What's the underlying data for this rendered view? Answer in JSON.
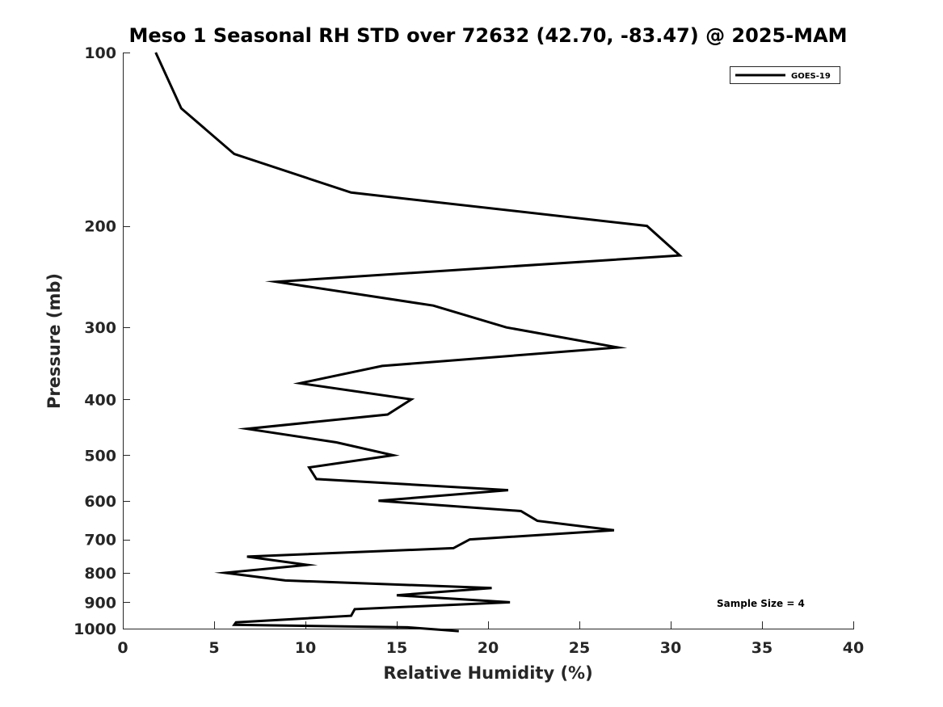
{
  "chart_data": {
    "type": "line",
    "title": "Meso 1 Seasonal RH STD over 72632 (42.70, -83.47) @ 2025-MAM",
    "xlabel": "Relative Humidity (%)",
    "ylabel": "Pressure (mb)",
    "xlim": [
      0,
      40
    ],
    "ylim": [
      100,
      1000
    ],
    "yscale": "log",
    "y_reversed": true,
    "x_ticks": [
      0,
      5,
      10,
      15,
      20,
      25,
      30,
      35,
      40
    ],
    "x_tick_labels": [
      "0",
      "5",
      "10",
      "15",
      "20",
      "25",
      "30",
      "35",
      "40"
    ],
    "y_ticks": [
      100,
      200,
      300,
      400,
      500,
      600,
      700,
      800,
      900,
      1000
    ],
    "y_tick_labels": [
      "100",
      "200",
      "300",
      "400",
      "500",
      "600",
      "700",
      "800",
      "900",
      "1000"
    ],
    "grid": false,
    "legend_position": "top-right",
    "series": [
      {
        "name": "GOES-19",
        "color": "#000000",
        "points": [
          {
            "x": 1.8,
            "y": 100
          },
          {
            "x": 3.2,
            "y": 125
          },
          {
            "x": 6.1,
            "y": 150
          },
          {
            "x": 12.5,
            "y": 175
          },
          {
            "x": 28.7,
            "y": 200
          },
          {
            "x": 30.5,
            "y": 225
          },
          {
            "x": 8.4,
            "y": 250
          },
          {
            "x": 17.0,
            "y": 275
          },
          {
            "x": 21.0,
            "y": 300
          },
          {
            "x": 27.1,
            "y": 325
          },
          {
            "x": 14.2,
            "y": 350
          },
          {
            "x": 9.7,
            "y": 375
          },
          {
            "x": 15.8,
            "y": 400
          },
          {
            "x": 14.5,
            "y": 425
          },
          {
            "x": 6.8,
            "y": 450
          },
          {
            "x": 11.7,
            "y": 475
          },
          {
            "x": 14.8,
            "y": 500
          },
          {
            "x": 10.2,
            "y": 525
          },
          {
            "x": 10.6,
            "y": 550
          },
          {
            "x": 21.1,
            "y": 575
          },
          {
            "x": 14.0,
            "y": 600
          },
          {
            "x": 21.8,
            "y": 625
          },
          {
            "x": 22.7,
            "y": 650
          },
          {
            "x": 26.9,
            "y": 675
          },
          {
            "x": 19.0,
            "y": 700
          },
          {
            "x": 18.1,
            "y": 725
          },
          {
            "x": 6.8,
            "y": 750
          },
          {
            "x": 10.1,
            "y": 775
          },
          {
            "x": 5.6,
            "y": 800
          },
          {
            "x": 8.9,
            "y": 825
          },
          {
            "x": 20.2,
            "y": 850
          },
          {
            "x": 15.0,
            "y": 875
          },
          {
            "x": 21.2,
            "y": 900
          },
          {
            "x": 12.7,
            "y": 925
          },
          {
            "x": 12.5,
            "y": 950
          },
          {
            "x": 6.2,
            "y": 975
          },
          {
            "x": 6.1,
            "y": 985
          },
          {
            "x": 15.6,
            "y": 995
          },
          {
            "x": 18.4,
            "y": 1010
          }
        ]
      }
    ],
    "annotation": "Sample Size = 4"
  }
}
